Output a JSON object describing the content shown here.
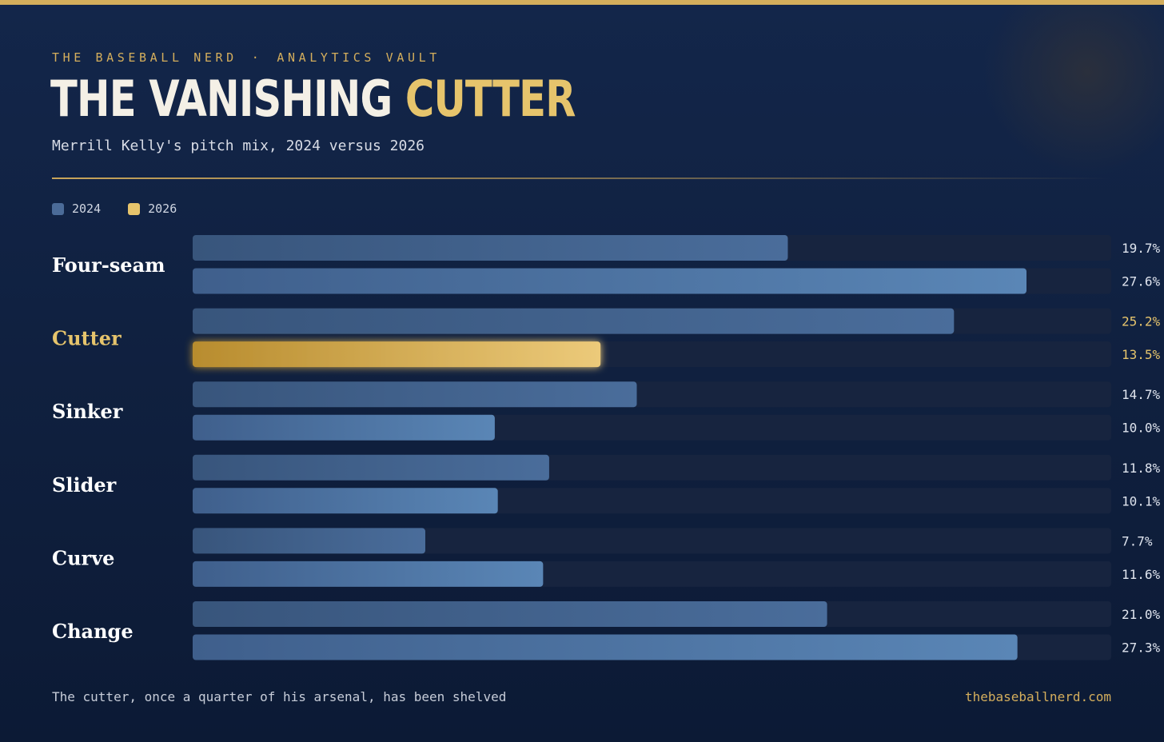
{
  "header": {
    "kicker_brand": "THE BASEBALL NERD",
    "kicker_separator": "·",
    "kicker_section": "ANALYTICS VAULT",
    "title_main": "THE VANISHING ",
    "title_accent": "CUTTER",
    "subtitle": "Merrill Kelly's pitch mix, 2024 versus 2026"
  },
  "legend": {
    "items": [
      {
        "label": "2024",
        "color": "#4b6b98"
      },
      {
        "label": "2026",
        "color": "#e6c46c"
      }
    ]
  },
  "footer": {
    "note": "The cutter, once a quarter of his arsenal, has been shelved",
    "site": "thebaseballnerd.com"
  },
  "colors": {
    "accent_gold": "#e6c46c",
    "bar_blue": "#4f75a6",
    "track": "#17243f",
    "background": "#10213f"
  },
  "chart_data": {
    "type": "bar",
    "orientation": "horizontal",
    "categories": [
      "Four-seam",
      "Cutter",
      "Sinker",
      "Slider",
      "Curve",
      "Change"
    ],
    "highlight_category": "Cutter",
    "series": [
      {
        "name": "2024",
        "values": [
          19.7,
          25.2,
          14.7,
          11.8,
          7.7,
          21.0
        ]
      },
      {
        "name": "2026",
        "values": [
          27.6,
          13.5,
          10.0,
          10.1,
          11.6,
          27.3
        ]
      }
    ],
    "value_labels": [
      [
        "19.7%",
        "27.6%"
      ],
      [
        "25.2%",
        "13.5%"
      ],
      [
        "14.7%",
        "10.0%"
      ],
      [
        "11.8%",
        "10.1%"
      ],
      [
        "7.7%",
        "11.6%"
      ],
      [
        "21.0%",
        "27.3%"
      ]
    ],
    "xlim": [
      0,
      30
    ],
    "unit": "%",
    "grid": false,
    "legend_position": "top-left"
  }
}
